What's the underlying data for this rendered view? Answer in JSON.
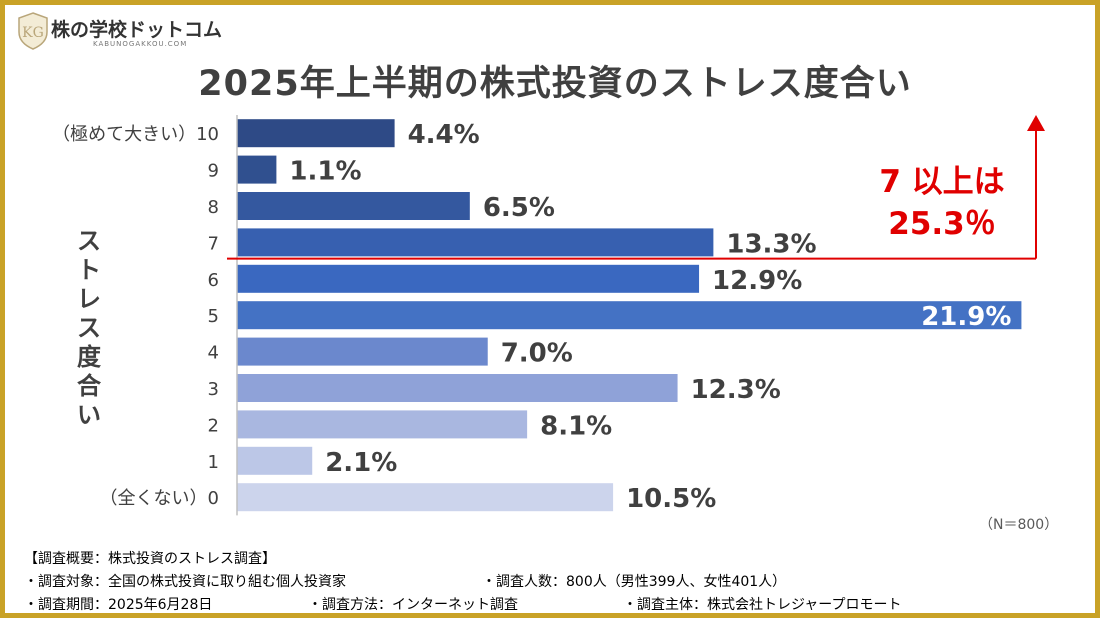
{
  "brand": {
    "name": "株の学校ドットコム",
    "url_text": "KABUNOGAKKOU.COM",
    "mark": "KG"
  },
  "chart_data": {
    "type": "bar",
    "orientation": "horizontal",
    "title": "2025年上半期の株式投資のストレス度合い",
    "ylabel": "ストレス度合い",
    "xlabel": "",
    "categories": [
      "（極めて大きい）10",
      "9",
      "8",
      "7",
      "6",
      "5",
      "4",
      "3",
      "2",
      "1",
      "（全くない）0"
    ],
    "values": [
      4.4,
      1.1,
      6.5,
      13.3,
      12.9,
      21.9,
      7.0,
      12.3,
      8.1,
      2.1,
      10.5
    ],
    "value_labels": [
      "4.4%",
      "1.1%",
      "6.5%",
      "13.3%",
      "12.9%",
      "21.9%",
      "7.0%",
      "12.3%",
      "8.1%",
      "2.1%",
      "10.5%"
    ],
    "xlim": [
      0,
      22
    ],
    "colors": [
      "#2e4a86",
      "#30508f",
      "#34589f",
      "#3760b0",
      "#3a68c0",
      "#4472c4",
      "#6b88cd",
      "#8fa2d8",
      "#a9b7e0",
      "#bcc7e7",
      "#ccd4ec"
    ],
    "inside_label_index": 5,
    "label_color": "#404040",
    "inside_label_color": "#ffffff",
    "annotation": {
      "line1": "7 以上は",
      "line2": "25.3％",
      "color": "#e00000"
    },
    "sample_note": "（N＝800）"
  },
  "footer": {
    "heading": "【調査概要：株式投資のストレス調査】",
    "target": "・調査対象：全国の株式投資に取り組む個人投資家",
    "count": "・調査人数：800人（男性399人、女性401人）",
    "period": "・調査期間：2025年6月28日",
    "method": "・調査方法：インターネット調査",
    "sponsor": "・調査主体：株式会社トレジャープロモート"
  }
}
